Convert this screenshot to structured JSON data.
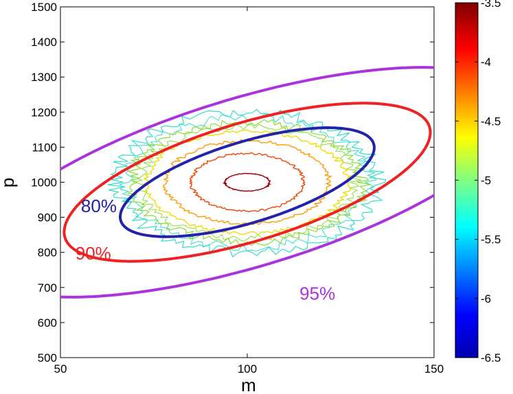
{
  "chart_data": {
    "type": "contour",
    "xlabel": "m",
    "ylabel": "p",
    "xlim": [
      50,
      150
    ],
    "ylim": [
      500,
      1500
    ],
    "x_ticks": [
      "50",
      "100",
      "150"
    ],
    "y_ticks": [
      "500",
      "600",
      "700",
      "800",
      "900",
      "1000",
      "1100",
      "1200",
      "1300",
      "1400",
      "1500"
    ],
    "colorbar": {
      "colormap": "jet",
      "range": [
        -6.5,
        -3.5
      ],
      "ticks": [
        "-3.5",
        "-4",
        "-4.5",
        "-5",
        "-5.5",
        "-6",
        "-6.5"
      ]
    },
    "density_contours": {
      "center": [
        100,
        1000
      ],
      "levels": [
        {
          "level": -5.6,
          "color": "#33ddcc",
          "rx": 35,
          "ry": 200
        },
        {
          "level": -5.2,
          "color": "#88dd33",
          "rx": 31,
          "ry": 172
        },
        {
          "level": -4.8,
          "color": "#eedd00",
          "rx": 27,
          "ry": 145
        },
        {
          "level": -4.5,
          "color": "#ff9900",
          "rx": 22,
          "ry": 118
        },
        {
          "level": -4.2,
          "color": "#ee4400",
          "rx": 15,
          "ry": 82
        },
        {
          "level": -3.8,
          "color": "#990000",
          "rx": 6,
          "ry": 25
        }
      ]
    },
    "confidence_ellipses": [
      {
        "label": "80%",
        "color": "#2222aa",
        "center": [
          100,
          1000
        ],
        "semi_axis_m": 34,
        "semi_axis_p": 120,
        "slope": 2.9
      },
      {
        "label": "90%",
        "color": "#ee2222",
        "center": [
          100,
          1000
        ],
        "semi_axis_m": 49,
        "semi_axis_p": 175,
        "slope": 2.9
      },
      {
        "label": "95%",
        "color": "#aa33dd",
        "center": [
          100,
          1000
        ],
        "semi_axis_m": 73,
        "semi_axis_p": 250,
        "slope": 2.9
      }
    ],
    "annotations": [
      {
        "text": "80%",
        "color": "#2222aa",
        "x": 55.5,
        "y": 915
      },
      {
        "text": "90%",
        "color": "#ee2222",
        "x": 54,
        "y": 780
      },
      {
        "text": "95%",
        "color": "#aa33dd",
        "x": 114,
        "y": 665
      }
    ]
  }
}
